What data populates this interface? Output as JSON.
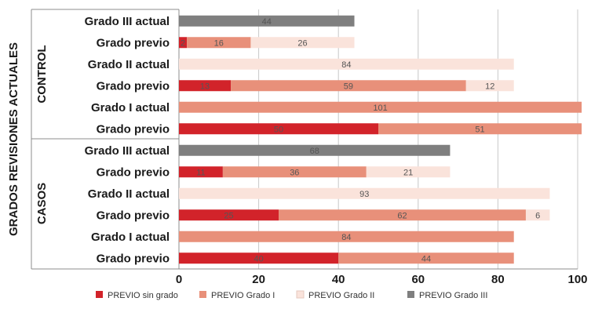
{
  "chart_data": {
    "type": "bar",
    "orientation": "horizontal",
    "stacked": true,
    "title": "",
    "axis_title": "GRADOS REVISIONES ACTUALES",
    "xlim": [
      0,
      100
    ],
    "x_ticks": [
      "0",
      "20",
      "40",
      "60",
      "80",
      "100"
    ],
    "grid": true,
    "legend_position": "bottom",
    "series": [
      {
        "name": "PREVIO sin grado",
        "color": "#d2232a"
      },
      {
        "name": "PREVIO Grado I",
        "color": "#e8907a"
      },
      {
        "name": "PREVIO Grado II",
        "color": "#fae3db"
      },
      {
        "name": "PREVIO Grado III",
        "color": "#7f7f7f"
      }
    ],
    "groups": [
      {
        "label": "CONTROL",
        "rows": [
          {
            "label": "Grado III actual",
            "values": [
              0,
              0,
              0,
              44
            ]
          },
          {
            "label": "Grado previo",
            "values": [
              2,
              16,
              26,
              0
            ]
          },
          {
            "label": "Grado II actual",
            "values": [
              0,
              0,
              84,
              0
            ]
          },
          {
            "label": "Grado previo",
            "values": [
              13,
              59,
              12,
              0
            ]
          },
          {
            "label": "Grado I actual",
            "values": [
              0,
              101,
              0,
              0
            ]
          },
          {
            "label": "Grado previo",
            "values": [
              50,
              51,
              0,
              0
            ]
          }
        ]
      },
      {
        "label": "CASOS",
        "rows": [
          {
            "label": "Grado III actual",
            "values": [
              0,
              0,
              0,
              68
            ]
          },
          {
            "label": "Grado previo",
            "values": [
              11,
              36,
              21,
              0
            ]
          },
          {
            "label": "Grado II actual",
            "values": [
              0,
              0,
              93,
              0
            ]
          },
          {
            "label": "Grado previo",
            "values": [
              25,
              62,
              6,
              0
            ]
          },
          {
            "label": "Grado I actual",
            "values": [
              0,
              84,
              0,
              0
            ]
          },
          {
            "label": "Grado previo",
            "values": [
              40,
              44,
              0,
              0
            ]
          }
        ]
      }
    ]
  }
}
